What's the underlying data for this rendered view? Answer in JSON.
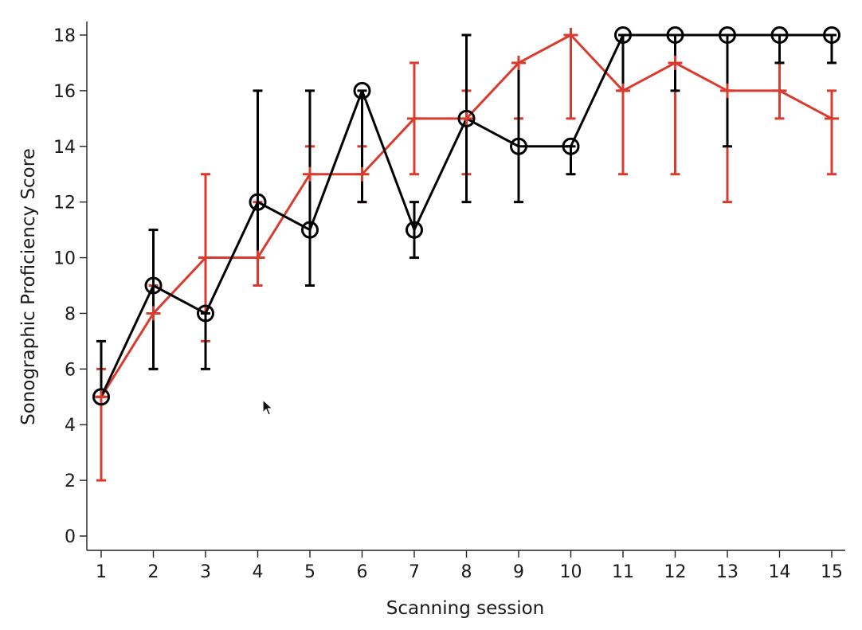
{
  "chart_data": {
    "type": "line",
    "title": "",
    "xlabel": "Scanning session",
    "ylabel": "Sonographic Proficiency Score",
    "x": [
      1,
      2,
      3,
      4,
      5,
      6,
      7,
      8,
      9,
      10,
      11,
      12,
      13,
      14,
      15
    ],
    "xlim": [
      1,
      15
    ],
    "ylim": [
      0,
      18
    ],
    "xticks": [
      "1",
      "2",
      "3",
      "4",
      "5",
      "6",
      "7",
      "8",
      "9",
      "10",
      "11",
      "12",
      "13",
      "14",
      "15"
    ],
    "yticks": [
      "0",
      "2",
      "4",
      "6",
      "8",
      "10",
      "12",
      "14",
      "16",
      "18"
    ],
    "grid": false,
    "legend": "none",
    "series": [
      {
        "color": "#d93b2f",
        "marker": "plus",
        "values": [
          5,
          8,
          10,
          10,
          13,
          13,
          15,
          15,
          17,
          18,
          16,
          17,
          16,
          16,
          15
        ],
        "err_low": [
          2,
          6,
          7,
          9,
          9,
          12,
          13,
          13,
          15,
          15,
          13,
          13,
          12,
          15,
          13
        ],
        "err_high": [
          6,
          9,
          13,
          12,
          14,
          14,
          17,
          16,
          17,
          18,
          16,
          18,
          16,
          17,
          16
        ]
      },
      {
        "color": "#000000",
        "marker": "circle",
        "values": [
          5,
          9,
          8,
          12,
          11,
          16,
          11,
          15,
          14,
          14,
          18,
          18,
          18,
          18,
          18
        ],
        "err_low": [
          5,
          6,
          6,
          10,
          9,
          12,
          10,
          12,
          12,
          13,
          16,
          16,
          14,
          17,
          17
        ],
        "err_high": [
          7,
          11,
          8,
          16,
          16,
          16,
          12,
          18,
          17,
          14,
          18,
          18,
          18,
          18,
          18
        ]
      }
    ]
  },
  "ui": {
    "cursor_icon": "mouse-pointer-icon"
  }
}
